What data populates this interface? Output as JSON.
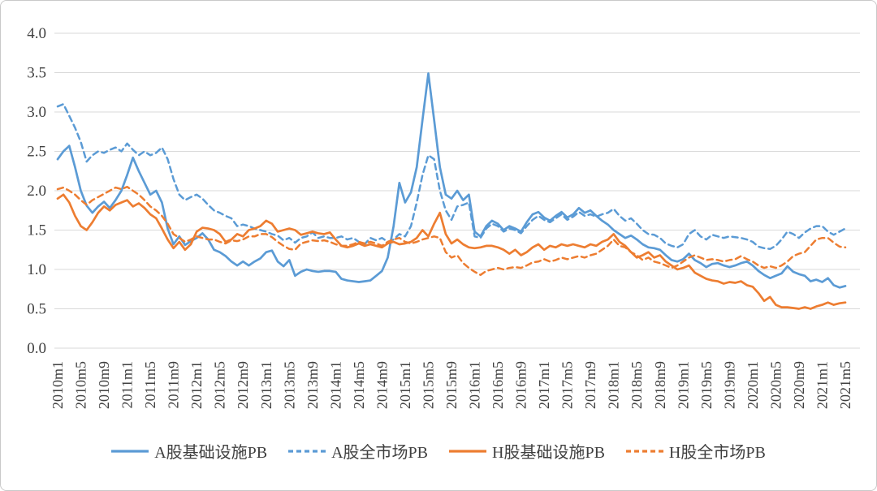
{
  "figure": {
    "background": "#ffffff",
    "border_color": "#c9c9c9"
  },
  "chart_data": {
    "type": "line",
    "title": "",
    "xlabel": "",
    "ylabel": "",
    "grid": "horizontal",
    "legend_position": "bottom",
    "gridline_color": "#d9d9d9",
    "tick_label_color": "#404040",
    "x_axis": {
      "start": "2010m1",
      "end": "2021m5",
      "frequency": "monthly",
      "points_per_series": 137,
      "tick_every_n_months": 4,
      "tick_labels": [
        "2010m1",
        "2010m5",
        "2010m9",
        "2011m1",
        "2011m5",
        "2011m9",
        "2012m1",
        "2012m5",
        "2012m9",
        "2013m1",
        "2013m5",
        "2013m9",
        "2014m1",
        "2014m5",
        "2014m9",
        "2015m1",
        "2015m5",
        "2015m9",
        "2016m1",
        "2016m5",
        "2016m9",
        "2017m1",
        "2017m5",
        "2017m9",
        "2018m1",
        "2018m5",
        "2018m9",
        "2019m1",
        "2019m5",
        "2019m9",
        "2020m1",
        "2020m5",
        "2020m9",
        "2021m1",
        "2021m5"
      ]
    },
    "y_axis": {
      "min": 0.0,
      "max": 4.0,
      "step": 0.5,
      "tick_labels": [
        "4.0",
        "3.5",
        "3.0",
        "2.5",
        "2.0",
        "1.5",
        "1.0",
        "0.5",
        "0.0"
      ]
    },
    "series": [
      {
        "name": "A股基础设施PB",
        "color": "#5B9BD5",
        "style": "solid",
        "values": [
          2.4,
          2.5,
          2.57,
          2.3,
          2.0,
          1.81,
          1.72,
          1.8,
          1.86,
          1.78,
          1.88,
          2.0,
          2.2,
          2.42,
          2.25,
          2.1,
          1.95,
          2.0,
          1.85,
          1.52,
          1.32,
          1.42,
          1.31,
          1.36,
          1.4,
          1.46,
          1.38,
          1.25,
          1.22,
          1.17,
          1.1,
          1.05,
          1.1,
          1.05,
          1.1,
          1.14,
          1.22,
          1.24,
          1.1,
          1.04,
          1.12,
          0.92,
          0.97,
          1.0,
          0.98,
          0.97,
          0.98,
          0.98,
          0.97,
          0.88,
          0.86,
          0.85,
          0.84,
          0.85,
          0.86,
          0.92,
          0.98,
          1.15,
          1.55,
          2.1,
          1.85,
          1.98,
          2.3,
          2.9,
          3.49,
          2.9,
          2.3,
          1.95,
          1.9,
          2.0,
          1.88,
          1.95,
          1.48,
          1.42,
          1.55,
          1.62,
          1.58,
          1.5,
          1.55,
          1.52,
          1.48,
          1.6,
          1.7,
          1.73,
          1.66,
          1.62,
          1.68,
          1.73,
          1.66,
          1.7,
          1.78,
          1.72,
          1.75,
          1.68,
          1.62,
          1.57,
          1.5,
          1.45,
          1.4,
          1.43,
          1.38,
          1.32,
          1.28,
          1.27,
          1.25,
          1.18,
          1.12,
          1.1,
          1.13,
          1.2,
          1.12,
          1.08,
          1.03,
          1.07,
          1.08,
          1.05,
          1.03,
          1.05,
          1.08,
          1.1,
          1.05,
          0.98,
          0.93,
          0.89,
          0.92,
          0.95,
          1.04,
          0.97,
          0.94,
          0.92,
          0.85,
          0.87,
          0.84,
          0.89,
          0.8,
          0.77,
          0.79
        ]
      },
      {
        "name": "A股全市场PB",
        "color": "#5B9BD5",
        "style": "dashed",
        "values": [
          3.07,
          3.1,
          2.95,
          2.8,
          2.62,
          2.37,
          2.45,
          2.5,
          2.48,
          2.52,
          2.55,
          2.5,
          2.6,
          2.52,
          2.45,
          2.5,
          2.45,
          2.48,
          2.55,
          2.4,
          2.15,
          1.95,
          1.88,
          1.92,
          1.95,
          1.9,
          1.82,
          1.75,
          1.72,
          1.68,
          1.65,
          1.55,
          1.57,
          1.55,
          1.52,
          1.5,
          1.48,
          1.45,
          1.43,
          1.37,
          1.4,
          1.34,
          1.4,
          1.42,
          1.47,
          1.4,
          1.42,
          1.4,
          1.4,
          1.42,
          1.38,
          1.4,
          1.35,
          1.32,
          1.4,
          1.37,
          1.4,
          1.35,
          1.38,
          1.45,
          1.42,
          1.55,
          1.85,
          2.2,
          2.45,
          2.4,
          2.0,
          1.75,
          1.63,
          1.8,
          1.82,
          1.85,
          1.42,
          1.4,
          1.52,
          1.58,
          1.55,
          1.48,
          1.52,
          1.5,
          1.46,
          1.55,
          1.63,
          1.68,
          1.63,
          1.6,
          1.65,
          1.7,
          1.63,
          1.67,
          1.73,
          1.68,
          1.7,
          1.67,
          1.7,
          1.72,
          1.77,
          1.68,
          1.62,
          1.65,
          1.58,
          1.5,
          1.45,
          1.44,
          1.4,
          1.33,
          1.3,
          1.28,
          1.32,
          1.45,
          1.5,
          1.42,
          1.38,
          1.44,
          1.42,
          1.4,
          1.42,
          1.41,
          1.4,
          1.38,
          1.35,
          1.29,
          1.27,
          1.26,
          1.3,
          1.38,
          1.48,
          1.45,
          1.4,
          1.47,
          1.52,
          1.55,
          1.55,
          1.48,
          1.44,
          1.48,
          1.52
        ]
      },
      {
        "name": "H股基础设施PB",
        "color": "#ED7D31",
        "style": "solid",
        "values": [
          1.9,
          1.95,
          1.85,
          1.68,
          1.55,
          1.5,
          1.6,
          1.72,
          1.8,
          1.75,
          1.82,
          1.85,
          1.88,
          1.8,
          1.84,
          1.78,
          1.7,
          1.65,
          1.52,
          1.38,
          1.27,
          1.35,
          1.25,
          1.32,
          1.48,
          1.53,
          1.52,
          1.5,
          1.45,
          1.35,
          1.38,
          1.45,
          1.42,
          1.5,
          1.52,
          1.55,
          1.62,
          1.58,
          1.48,
          1.5,
          1.52,
          1.5,
          1.44,
          1.46,
          1.48,
          1.46,
          1.45,
          1.47,
          1.38,
          1.3,
          1.28,
          1.3,
          1.33,
          1.3,
          1.32,
          1.3,
          1.28,
          1.33,
          1.35,
          1.32,
          1.33,
          1.35,
          1.4,
          1.5,
          1.42,
          1.58,
          1.72,
          1.45,
          1.33,
          1.38,
          1.32,
          1.28,
          1.27,
          1.28,
          1.3,
          1.3,
          1.28,
          1.25,
          1.2,
          1.25,
          1.18,
          1.22,
          1.28,
          1.32,
          1.25,
          1.3,
          1.28,
          1.32,
          1.3,
          1.32,
          1.3,
          1.28,
          1.32,
          1.3,
          1.35,
          1.38,
          1.45,
          1.35,
          1.3,
          1.22,
          1.15,
          1.18,
          1.22,
          1.15,
          1.18,
          1.1,
          1.05,
          1.0,
          1.02,
          1.05,
          0.96,
          0.92,
          0.88,
          0.86,
          0.85,
          0.82,
          0.84,
          0.83,
          0.85,
          0.8,
          0.78,
          0.7,
          0.6,
          0.65,
          0.55,
          0.52,
          0.52,
          0.51,
          0.5,
          0.52,
          0.5,
          0.53,
          0.55,
          0.58,
          0.55,
          0.57,
          0.58
        ]
      },
      {
        "name": "H股全市场PB",
        "color": "#ED7D31",
        "style": "dashed",
        "values": [
          2.02,
          2.04,
          2.0,
          1.95,
          1.88,
          1.82,
          1.88,
          1.92,
          1.96,
          2.0,
          2.04,
          2.02,
          2.05,
          2.0,
          1.95,
          1.88,
          1.8,
          1.75,
          1.68,
          1.58,
          1.45,
          1.4,
          1.35,
          1.38,
          1.42,
          1.4,
          1.38,
          1.38,
          1.35,
          1.33,
          1.37,
          1.36,
          1.38,
          1.42,
          1.42,
          1.45,
          1.45,
          1.41,
          1.35,
          1.3,
          1.26,
          1.25,
          1.33,
          1.35,
          1.37,
          1.36,
          1.37,
          1.35,
          1.32,
          1.3,
          1.3,
          1.32,
          1.35,
          1.33,
          1.35,
          1.33,
          1.3,
          1.35,
          1.38,
          1.4,
          1.35,
          1.33,
          1.35,
          1.38,
          1.4,
          1.42,
          1.4,
          1.22,
          1.15,
          1.18,
          1.08,
          1.02,
          0.97,
          0.93,
          0.98,
          1.0,
          1.02,
          1.0,
          1.02,
          1.03,
          1.02,
          1.05,
          1.09,
          1.1,
          1.13,
          1.1,
          1.12,
          1.15,
          1.13,
          1.15,
          1.17,
          1.15,
          1.18,
          1.2,
          1.25,
          1.3,
          1.38,
          1.3,
          1.28,
          1.22,
          1.18,
          1.12,
          1.15,
          1.1,
          1.08,
          1.05,
          1.02,
          1.05,
          1.1,
          1.15,
          1.18,
          1.15,
          1.12,
          1.13,
          1.12,
          1.1,
          1.12,
          1.13,
          1.17,
          1.13,
          1.1,
          1.05,
          1.02,
          1.04,
          1.02,
          1.05,
          1.1,
          1.17,
          1.2,
          1.22,
          1.3,
          1.38,
          1.4,
          1.4,
          1.34,
          1.29,
          1.28
        ]
      }
    ]
  }
}
